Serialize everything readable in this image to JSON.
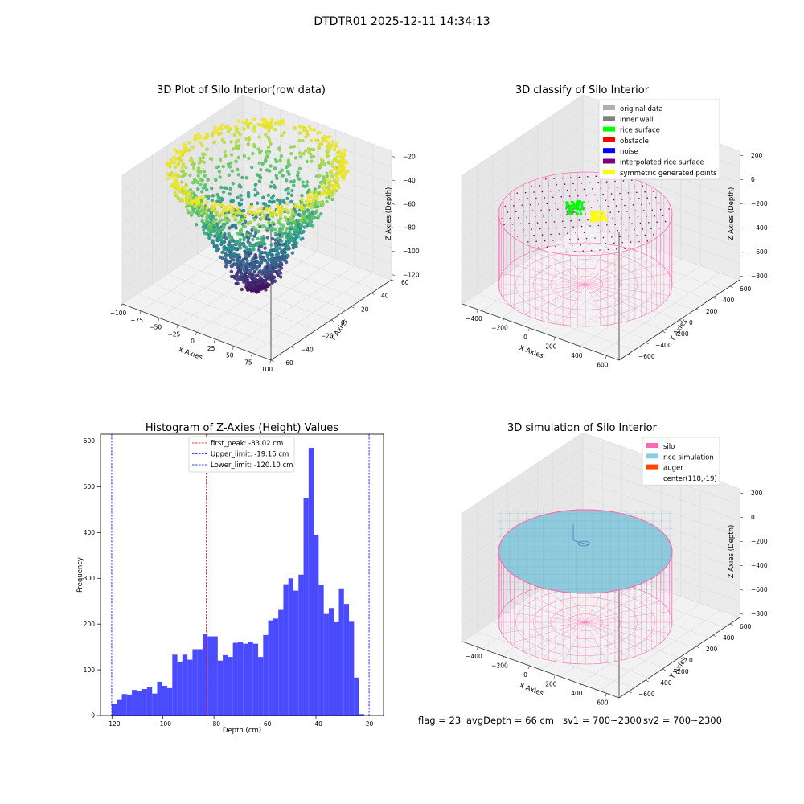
{
  "figure_title": "DTDTR01 2025-12-11 14:34:13",
  "panels": {
    "raw": {
      "title": "3D Plot of Silo Interior(row data)",
      "x_label": "X Axies",
      "y_label": "Y Axies",
      "z_label": "Z Axies (Depth)",
      "x_ticks": [
        "−100",
        "−75",
        "−50",
        "−25",
        "0",
        "25",
        "50",
        "75",
        "100"
      ],
      "y_ticks": [
        "−60",
        "−40",
        "−20",
        "0",
        "20",
        "40",
        "60"
      ],
      "z_ticks": [
        "−20",
        "−40",
        "−60",
        "−80",
        "−100",
        "−120"
      ]
    },
    "classify": {
      "title": "3D classify of Silo Interior",
      "x_label": "X Axies",
      "y_label": "Y Axies",
      "z_label": "Z Axies (Depth)",
      "x_ticks": [
        "−400",
        "−200",
        "0",
        "200",
        "400",
        "600"
      ],
      "y_ticks": [
        "600",
        "400",
        "200",
        "0",
        "−200",
        "−400",
        "−600"
      ],
      "z_ticks": [
        "200",
        "0",
        "−200",
        "−400",
        "−600",
        "−800"
      ],
      "legend": [
        {
          "label": "original data",
          "color": "#b0b0b0"
        },
        {
          "label": "inner wall",
          "color": "#808080"
        },
        {
          "label": "rice surface",
          "color": "#00ff00"
        },
        {
          "label": "obstacle",
          "color": "#ff0000"
        },
        {
          "label": "noise",
          "color": "#0000ff"
        },
        {
          "label": "interpolated rice surface",
          "color": "#800080"
        },
        {
          "label": "symmetric generated points",
          "color": "#ffff00"
        }
      ]
    },
    "histogram": {
      "title": "Histogram of Z-Axies (Height) Values",
      "x_label": "Depth (cm)",
      "y_label": "Frequency",
      "x_ticks": [
        "−120",
        "−100",
        "−80",
        "−60",
        "−40",
        "−20"
      ],
      "y_ticks": [
        "0",
        "100",
        "200",
        "300",
        "400",
        "500",
        "600"
      ],
      "legend": [
        {
          "label": "first_peak: -83.02 cm",
          "color": "#ff0000"
        },
        {
          "label": "Upper_limit: -19.16 cm",
          "color": "#0000ff"
        },
        {
          "label": "Lower_limit: -120.10 cm",
          "color": "#0000ff"
        }
      ]
    },
    "simulation": {
      "title": "3D simulation of Silo Interior",
      "x_label": "X Axies",
      "y_label": "Y Axies",
      "z_label": "Z Axies (Depth)",
      "x_ticks": [
        "−400",
        "−200",
        "0",
        "200",
        "400",
        "600"
      ],
      "y_ticks": [
        "600",
        "400",
        "200",
        "0",
        "−200",
        "−400",
        "−600"
      ],
      "z_ticks": [
        "200",
        "0",
        "−200",
        "−400",
        "−600",
        "−800"
      ],
      "legend": [
        {
          "label": "silo",
          "color": "#ff69b4"
        },
        {
          "label": "rice simulation",
          "color": "#87ceeb"
        },
        {
          "label": "auger",
          "color": "#ff4500"
        },
        {
          "label": "center(118,-19)",
          "color": ""
        }
      ]
    }
  },
  "status": {
    "flag": "flag = 23",
    "avg_depth": "avgDepth = 66 cm",
    "sv1": "sv1 = 700~2300",
    "sv2": "sv2 = 700~2300"
  },
  "chart_data": [
    {
      "type": "scatter",
      "title": "3D Plot of Silo Interior(row data)",
      "xlabel": "X Axies",
      "ylabel": "Y Axies",
      "zlabel": "Z Axies (Depth)",
      "xlim": [
        -100,
        100
      ],
      "ylim": [
        -60,
        60
      ],
      "zlim": [
        -125,
        -15
      ],
      "colormap": "viridis",
      "note_points": "funnel-shaped point cloud: dense ring near z=-20 at top, narrowing to a dense cluster near z=-120 at bottom"
    },
    {
      "type": "scatter",
      "title": "3D classify of Silo Interior",
      "xlabel": "X Axies",
      "ylabel": "Y Axies",
      "zlabel": "Z Axies (Depth)",
      "xlim": [
        -500,
        700
      ],
      "ylim": [
        -650,
        650
      ],
      "zlim": [
        -900,
        250
      ],
      "series": [
        {
          "name": "rice surface",
          "color": "#00ff00"
        },
        {
          "name": "interpolated rice surface",
          "color": "#800080"
        },
        {
          "name": "symmetric generated points",
          "color": "#ffff00"
        }
      ]
    },
    {
      "type": "bar",
      "title": "Histogram of Z-Axies (Height) Values",
      "xlabel": "Depth (cm)",
      "ylabel": "Frequency",
      "xlim": [
        -124.5,
        -13.5
      ],
      "ylim": [
        0,
        615
      ],
      "bin_start": -120.1,
      "bin_width": 1.98,
      "values": [
        26,
        34,
        47,
        46,
        56,
        54,
        58,
        62,
        48,
        74,
        65,
        60,
        133,
        118,
        133,
        122,
        145,
        145,
        178,
        173,
        173,
        120,
        132,
        128,
        159,
        160,
        157,
        160,
        157,
        128,
        176,
        208,
        212,
        231,
        287,
        300,
        273,
        308,
        475,
        585,
        394,
        286,
        222,
        235,
        204,
        278,
        244,
        205,
        83,
        3
      ],
      "vlines": [
        {
          "x": -83.02,
          "label": "first_peak: -83.02 cm",
          "color": "#ff0000"
        },
        {
          "x": -19.16,
          "label": "Upper_limit: -19.16 cm",
          "color": "#0000ff"
        },
        {
          "x": -120.1,
          "label": "Lower_limit: -120.10 cm",
          "color": "#0000ff"
        }
      ]
    },
    {
      "type": "scatter",
      "title": "3D simulation of Silo Interior",
      "xlabel": "X Axies",
      "ylabel": "Y Axies",
      "zlabel": "Z Axies (Depth)",
      "xlim": [
        -500,
        700
      ],
      "ylim": [
        -650,
        650
      ],
      "zlim": [
        -900,
        300
      ],
      "series": [
        {
          "name": "silo",
          "color": "#ff69b4"
        },
        {
          "name": "rice simulation",
          "color": "#87ceeb"
        },
        {
          "name": "auger",
          "color": "#ff4500"
        }
      ]
    }
  ]
}
